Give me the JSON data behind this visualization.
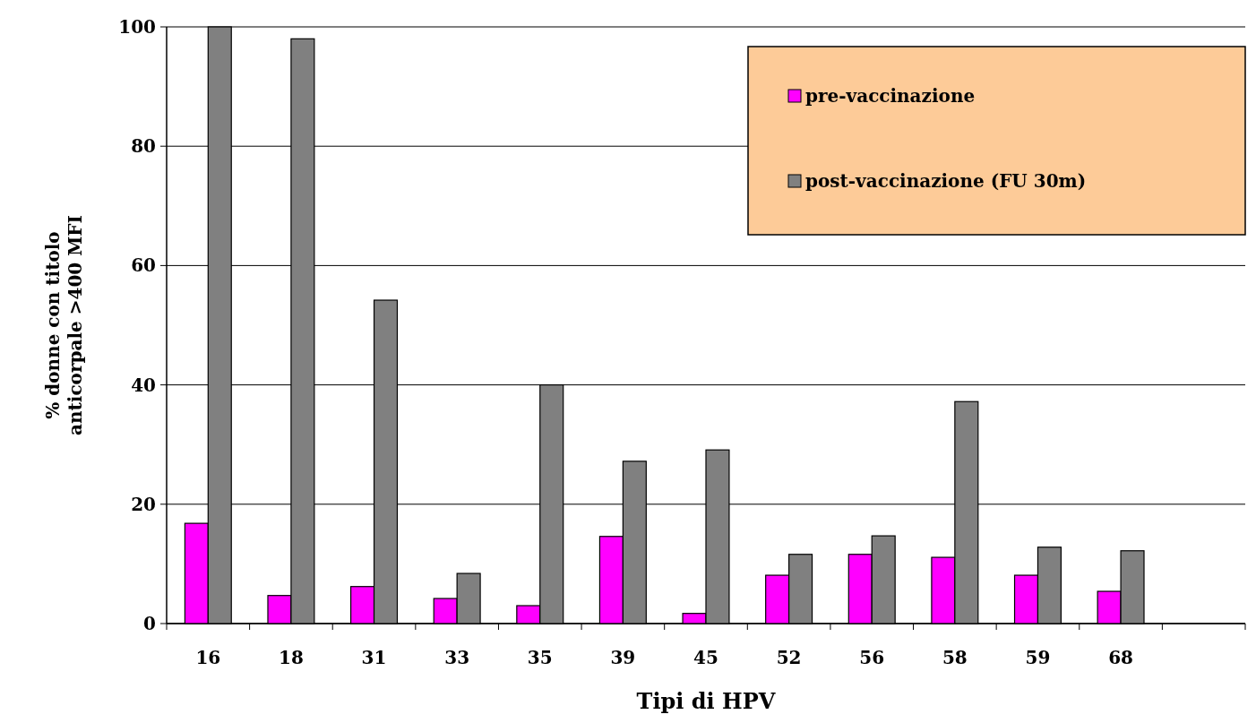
{
  "chart_data": {
    "type": "bar",
    "xlabel": "Tipi di HPV",
    "ylabel": "% donne con titolo anticorpale >400 MFI",
    "categories": [
      "16",
      "18",
      "31",
      "33",
      "35",
      "39",
      "45",
      "52",
      "56",
      "58",
      "59",
      "68",
      null
    ],
    "series": [
      {
        "name": "pre-vaccinazione",
        "color": "#ff00ff",
        "values": [
          16.8,
          4.7,
          6.2,
          4.2,
          3,
          14.6,
          1.7,
          8.1,
          11.6,
          11.1,
          8.1,
          5.4,
          null
        ]
      },
      {
        "name": "post-vaccinazione (FU 30m)",
        "color": "#808080",
        "values": [
          100,
          98,
          54.2,
          8.4,
          40,
          27.2,
          29.1,
          11.6,
          14.7,
          37.2,
          12.8,
          12.2,
          null
        ]
      }
    ],
    "ylim": [
      0,
      100
    ],
    "yticks": [
      0,
      20,
      40,
      60,
      80,
      100
    ],
    "grid": "y",
    "legend": "top right"
  }
}
